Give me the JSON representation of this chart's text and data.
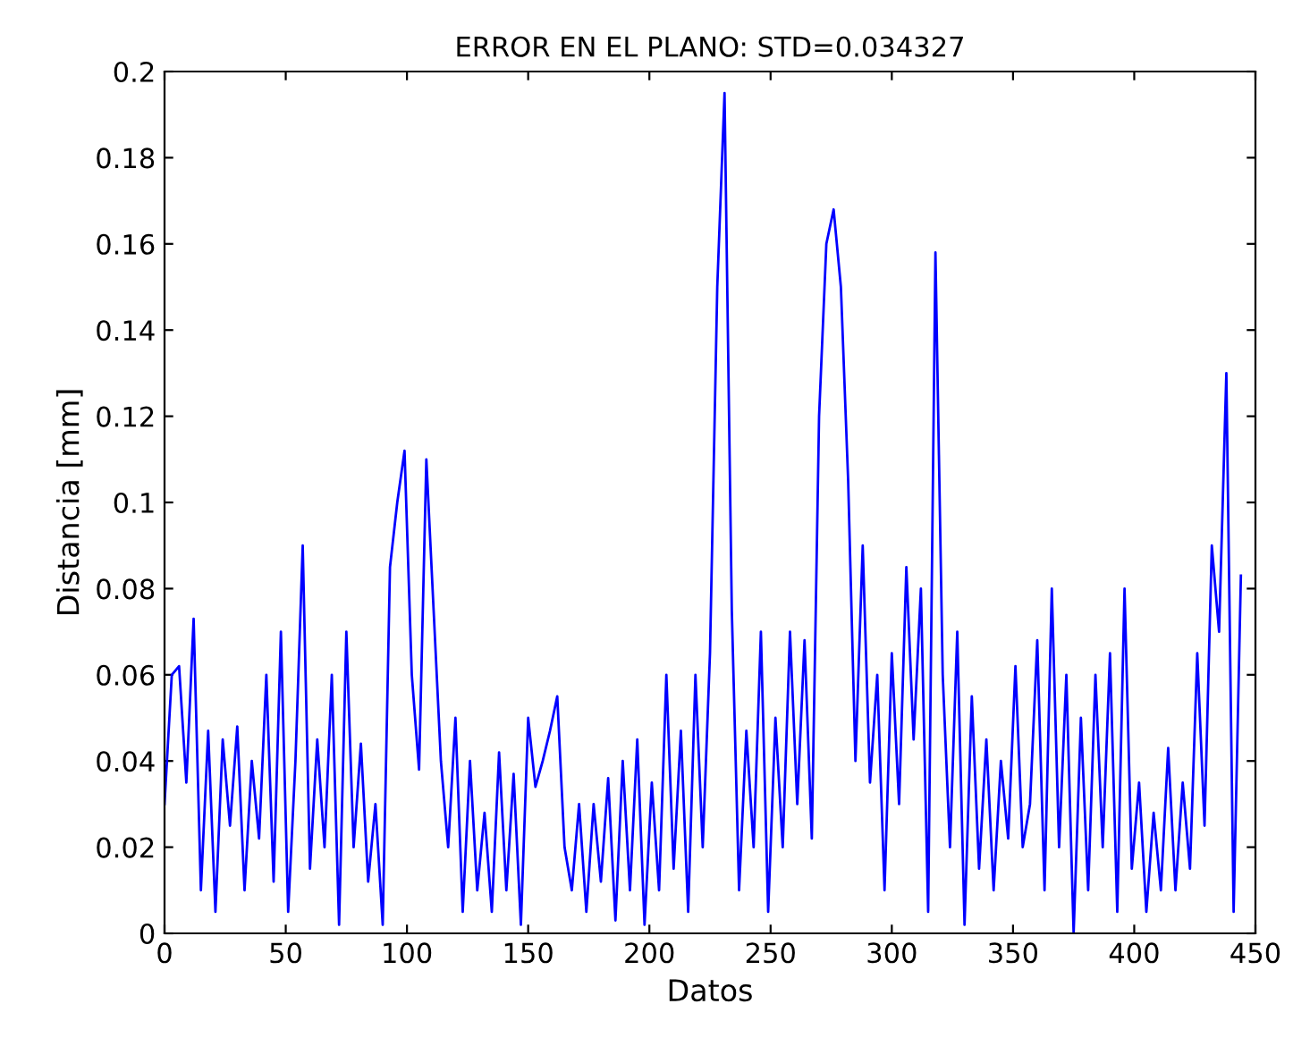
{
  "chart_data": {
    "type": "line",
    "title": "ERROR EN EL PLANO: STD=0.034327",
    "xlabel": "Datos",
    "ylabel": "Distancia [mm]",
    "x": [
      0,
      3,
      6,
      9,
      12,
      15,
      18,
      21,
      24,
      27,
      30,
      33,
      36,
      39,
      42,
      45,
      48,
      51,
      54,
      57,
      60,
      63,
      66,
      69,
      72,
      75,
      78,
      81,
      84,
      87,
      90,
      93,
      96,
      99,
      102,
      105,
      108,
      111,
      114,
      117,
      120,
      123,
      126,
      129,
      132,
      135,
      138,
      141,
      144,
      147,
      150,
      153,
      156,
      159,
      162,
      165,
      168,
      171,
      174,
      177,
      180,
      183,
      186,
      189,
      192,
      195,
      198,
      201,
      204,
      207,
      210,
      213,
      216,
      219,
      222,
      225,
      228,
      231,
      234,
      237,
      240,
      243,
      246,
      249,
      252,
      255,
      258,
      261,
      264,
      267,
      270,
      273,
      276,
      279,
      282,
      285,
      288,
      291,
      294,
      297,
      300,
      303,
      306,
      309,
      312,
      315,
      318,
      321,
      324,
      327,
      330,
      333,
      336,
      339,
      342,
      345,
      348,
      351,
      354,
      357,
      360,
      363,
      366,
      369,
      372,
      375,
      378,
      381,
      384,
      387,
      390,
      393,
      396,
      399,
      402,
      405,
      408,
      411,
      414,
      417,
      420,
      423,
      426,
      429,
      432,
      435,
      438,
      441,
      444
    ],
    "series": [
      {
        "color": "#0000ff",
        "values": [
          0.03,
          0.06,
          0.062,
          0.035,
          0.073,
          0.01,
          0.047,
          0.005,
          0.045,
          0.025,
          0.048,
          0.01,
          0.04,
          0.022,
          0.06,
          0.012,
          0.07,
          0.005,
          0.04,
          0.09,
          0.015,
          0.045,
          0.02,
          0.06,
          0.002,
          0.07,
          0.02,
          0.044,
          0.012,
          0.03,
          0.002,
          0.085,
          0.1,
          0.112,
          0.06,
          0.038,
          0.11,
          0.075,
          0.04,
          0.02,
          0.05,
          0.005,
          0.04,
          0.01,
          0.028,
          0.005,
          0.042,
          0.01,
          0.037,
          0.002,
          0.05,
          0.034,
          0.04,
          0.047,
          0.055,
          0.02,
          0.01,
          0.03,
          0.005,
          0.03,
          0.012,
          0.036,
          0.003,
          0.04,
          0.01,
          0.045,
          0.002,
          0.035,
          0.01,
          0.06,
          0.015,
          0.047,
          0.005,
          0.06,
          0.02,
          0.065,
          0.15,
          0.195,
          0.075,
          0.01,
          0.047,
          0.02,
          0.07,
          0.005,
          0.05,
          0.02,
          0.07,
          0.03,
          0.068,
          0.022,
          0.12,
          0.16,
          0.168,
          0.15,
          0.105,
          0.04,
          0.09,
          0.035,
          0.06,
          0.01,
          0.065,
          0.03,
          0.085,
          0.045,
          0.08,
          0.005,
          0.158,
          0.06,
          0.02,
          0.07,
          0.002,
          0.055,
          0.015,
          0.045,
          0.01,
          0.04,
          0.022,
          0.062,
          0.02,
          0.03,
          0.068,
          0.01,
          0.08,
          0.02,
          0.06,
          0.0,
          0.05,
          0.01,
          0.06,
          0.02,
          0.065,
          0.005,
          0.08,
          0.015,
          0.035,
          0.005,
          0.028,
          0.01,
          0.043,
          0.01,
          0.035,
          0.015,
          0.065,
          0.025,
          0.09,
          0.07,
          0.13,
          0.005,
          0.083
        ]
      }
    ],
    "xlim": [
      0,
      450
    ],
    "xticks": [
      0,
      50,
      100,
      150,
      200,
      250,
      300,
      350,
      400,
      450
    ],
    "ylim": [
      0,
      0.2
    ],
    "yticks": [
      0,
      0.02,
      0.04,
      0.06,
      0.08,
      0.1,
      0.12,
      0.14,
      0.16,
      0.18,
      0.2
    ],
    "grid": false,
    "marker": "none",
    "line_style": "solid"
  }
}
